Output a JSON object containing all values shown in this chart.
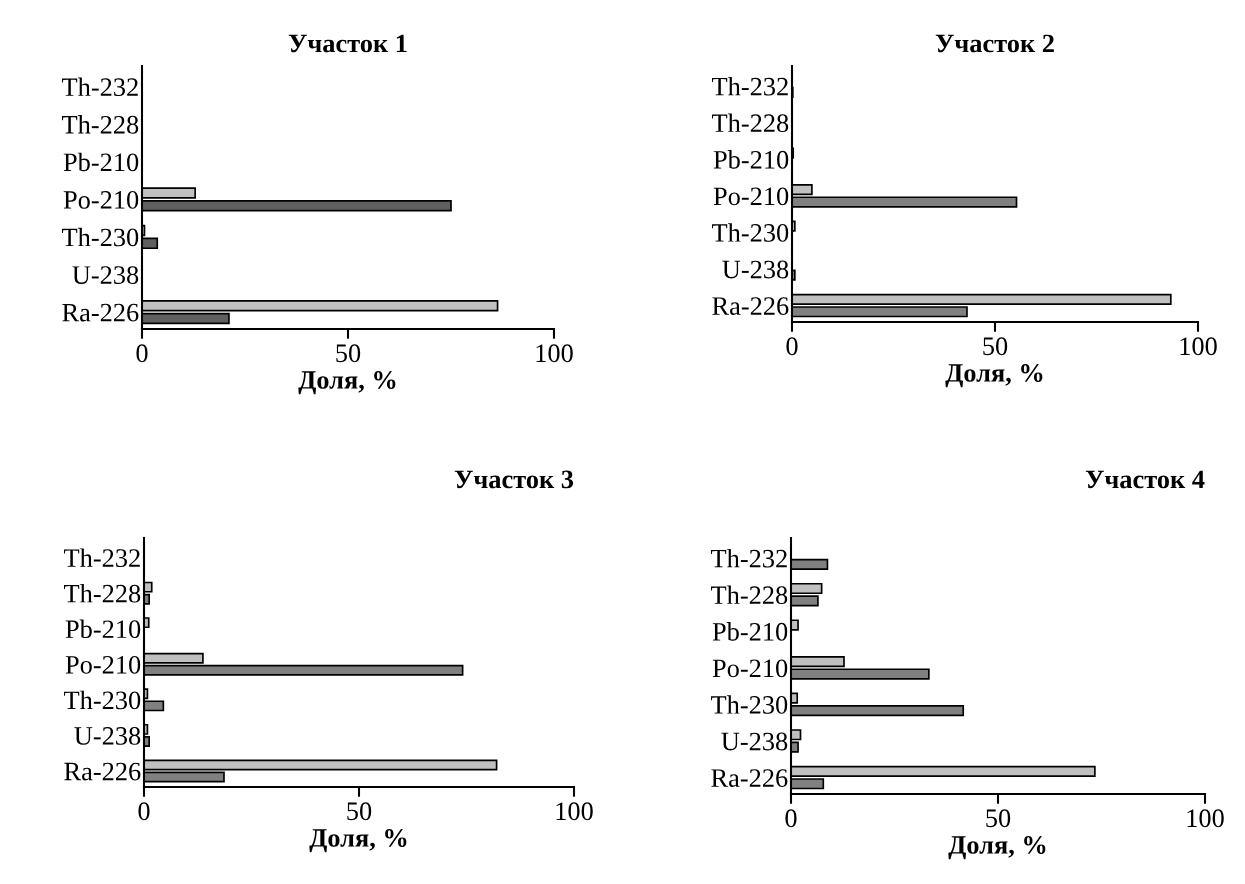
{
  "chart_data": [
    {
      "type": "bar",
      "orientation": "horizontal",
      "title": "Участок 1",
      "xlabel": "Доля, %",
      "categories": [
        "Th-232",
        "Th-228",
        "Pb-210",
        "Po-210",
        "Th-230",
        "U-238",
        "Ra-226"
      ],
      "xlim": [
        0,
        100
      ],
      "xticks": [
        0,
        50,
        100
      ],
      "grid": false,
      "legend": false,
      "series": [
        {
          "color": "#c0c0c0",
          "values": [
            0,
            0,
            null,
            12.9,
            0.6,
            0,
            86.3
          ]
        },
        {
          "color": "#606060",
          "values": [
            0,
            0,
            0,
            75.0,
            3.7,
            0,
            21.1
          ]
        }
      ]
    },
    {
      "type": "bar",
      "orientation": "horizontal",
      "title": "Участок 2",
      "xlabel": "Доля, %",
      "categories": [
        "Th-232",
        "Th-228",
        "Pb-210",
        "Po-210",
        "Th-230",
        "U-238",
        "Ra-226"
      ],
      "xlim": [
        0,
        100
      ],
      "xticks": [
        0,
        50,
        100
      ],
      "grid": false,
      "legend": false,
      "series": [
        {
          "color": "#c0c0c0",
          "values": [
            0,
            null,
            0.3,
            4.9,
            0.7,
            0,
            93.3
          ]
        },
        {
          "color": "#808080",
          "values": [
            0.2,
            null,
            0,
            55.3,
            0,
            0.7,
            43.1
          ]
        }
      ]
    },
    {
      "type": "bar",
      "orientation": "horizontal",
      "title": "Участок 3",
      "xlabel": "Доля, %",
      "categories": [
        "Th-232",
        "Th-228",
        "Pb-210",
        "Po-210",
        "Th-230",
        "U-238",
        "Ra-226"
      ],
      "xlim": [
        0,
        100
      ],
      "xticks": [
        0,
        50,
        100
      ],
      "grid": false,
      "legend": false,
      "series": [
        {
          "color": "#c0c0c0",
          "values": [
            0,
            1.8,
            1.1,
            13.7,
            0.8,
            0.8,
            82.0
          ]
        },
        {
          "color": "#808080",
          "values": [
            null,
            1.2,
            0,
            74.1,
            4.5,
            1.2,
            18.6
          ]
        }
      ]
    },
    {
      "type": "bar",
      "orientation": "horizontal",
      "title": "Участок 4",
      "xlabel": "Доля, %",
      "categories": [
        "Th-232",
        "Th-228",
        "Pb-210",
        "Po-210",
        "Th-230",
        "U-238",
        "Ra-226"
      ],
      "xlim": [
        0,
        100
      ],
      "xticks": [
        0,
        50,
        100
      ],
      "grid": false,
      "legend": false,
      "series": [
        {
          "color": "#c0c0c0",
          "values": [
            null,
            7.4,
            1.7,
            12.8,
            1.5,
            2.3,
            73.4
          ]
        },
        {
          "color": "#808080",
          "values": [
            8.8,
            6.5,
            0,
            33.3,
            41.6,
            1.7,
            7.8
          ]
        }
      ]
    }
  ]
}
